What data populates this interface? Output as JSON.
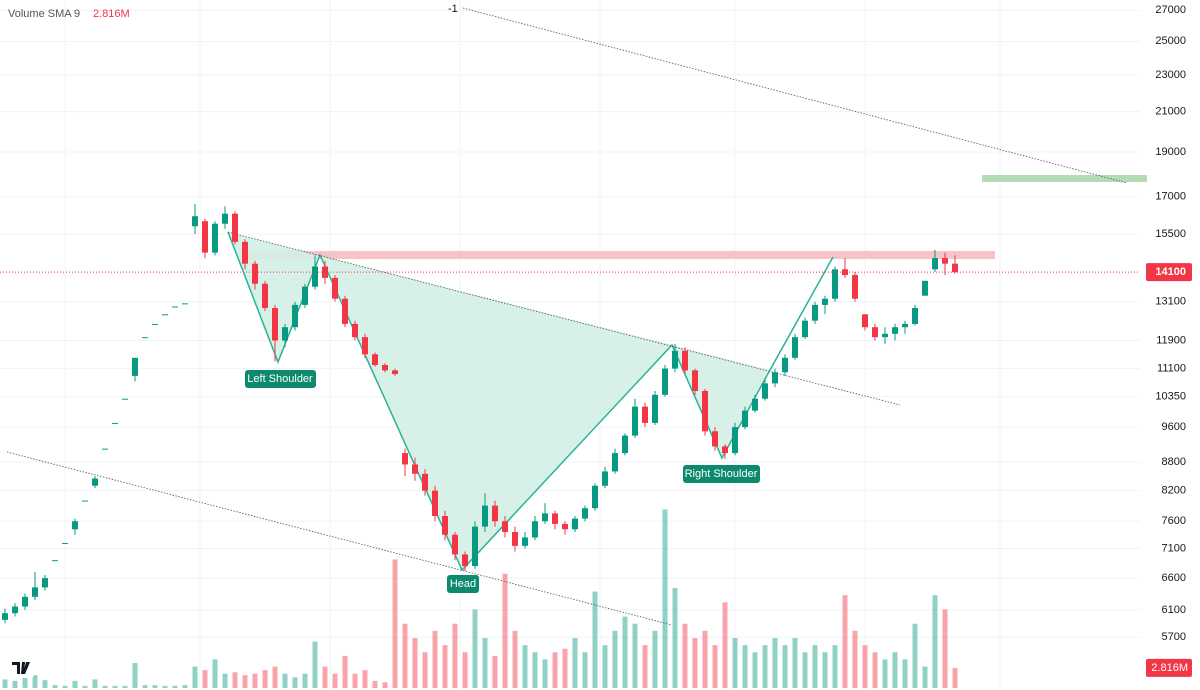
{
  "chart_data": {
    "type": "candlestick",
    "volume_sma_label": "Volume SMA 9",
    "volume_last": {
      "value": 2.816,
      "label": "2.816M"
    },
    "last_price": 14100,
    "trendline_label": "-1",
    "pattern_labels": {
      "left_shoulder": "Left Shoulder",
      "head": "Head",
      "right_shoulder": "Right Shoulder"
    },
    "log_scale": true,
    "grid": true,
    "up_color": "#089981",
    "down_color": "#f23645",
    "ylim": [
      5000,
      27700
    ],
    "yticks": [
      5700,
      6100,
      6600,
      7100,
      7600,
      8200,
      8800,
      9600,
      10350,
      11100,
      11900,
      13100,
      15500,
      17000,
      19000,
      21000,
      23000,
      25000,
      27000
    ],
    "volume_ylim": [
      0,
      42
    ],
    "candles": [
      [
        5950,
        6120,
        5900,
        6050
      ],
      [
        6050,
        6200,
        6000,
        6150
      ],
      [
        6150,
        6350,
        6100,
        6300
      ],
      [
        6300,
        6700,
        6250,
        6450
      ],
      [
        6450,
        6650,
        6400,
        6600
      ],
      [
        6900,
        6900,
        6900,
        6900
      ],
      [
        7200,
        7200,
        7200,
        7200
      ],
      [
        7450,
        7650,
        7350,
        7600
      ],
      [
        8000,
        8000,
        8000,
        8000
      ],
      [
        8300,
        8500,
        8250,
        8450
      ],
      [
        9100,
        9100,
        9100,
        9100
      ],
      [
        9700,
        9700,
        9700,
        9700
      ],
      [
        10300,
        10300,
        10300,
        10300
      ],
      [
        10900,
        11400,
        10750,
        11400
      ],
      [
        12000,
        12000,
        12000,
        12000
      ],
      [
        12400,
        12400,
        12400,
        12400
      ],
      [
        12700,
        12700,
        12700,
        12700
      ],
      [
        12950,
        12950,
        12950,
        12950
      ],
      [
        13050,
        13050,
        13050,
        13050
      ],
      [
        15800,
        16700,
        15500,
        16200
      ],
      [
        16000,
        16100,
        14600,
        14800
      ],
      [
        14800,
        16000,
        14700,
        15900
      ],
      [
        15900,
        16600,
        15700,
        16300
      ],
      [
        16300,
        16400,
        15100,
        15200
      ],
      [
        15200,
        15300,
        14200,
        14400
      ],
      [
        14400,
        14500,
        13500,
        13700
      ],
      [
        13700,
        13800,
        12800,
        12900
      ],
      [
        12900,
        13000,
        11300,
        11900
      ],
      [
        11900,
        12400,
        11700,
        12300
      ],
      [
        12300,
        13100,
        12200,
        13000
      ],
      [
        13000,
        13700,
        12900,
        13600
      ],
      [
        13600,
        14700,
        13500,
        14300
      ],
      [
        14300,
        14500,
        13700,
        13900
      ],
      [
        13900,
        14000,
        13100,
        13200
      ],
      [
        13200,
        13300,
        12300,
        12400
      ],
      [
        12400,
        12500,
        11900,
        12000
      ],
      [
        12000,
        12100,
        11400,
        11500
      ],
      [
        11500,
        11550,
        11150,
        11200
      ],
      [
        11200,
        11250,
        11000,
        11050
      ],
      [
        11050,
        11100,
        10900,
        10950
      ],
      [
        9000,
        9100,
        8500,
        8750
      ],
      [
        8750,
        8900,
        8400,
        8550
      ],
      [
        8550,
        8650,
        8100,
        8200
      ],
      [
        8200,
        8300,
        7600,
        7700
      ],
      [
        7700,
        7800,
        7250,
        7350
      ],
      [
        7350,
        7400,
        6900,
        7000
      ],
      [
        7000,
        7050,
        6720,
        6800
      ],
      [
        6800,
        7600,
        6750,
        7500
      ],
      [
        7500,
        8150,
        7400,
        7900
      ],
      [
        7900,
        8000,
        7500,
        7600
      ],
      [
        7600,
        7700,
        7300,
        7400
      ],
      [
        7400,
        7500,
        7050,
        7150
      ],
      [
        7150,
        7400,
        7100,
        7300
      ],
      [
        7300,
        7700,
        7250,
        7600
      ],
      [
        7600,
        7950,
        7550,
        7750
      ],
      [
        7750,
        7800,
        7450,
        7550
      ],
      [
        7550,
        7600,
        7350,
        7450
      ],
      [
        7450,
        7700,
        7400,
        7650
      ],
      [
        7650,
        7900,
        7600,
        7850
      ],
      [
        7850,
        8350,
        7800,
        8300
      ],
      [
        8300,
        8700,
        8250,
        8600
      ],
      [
        8600,
        9100,
        8550,
        9000
      ],
      [
        9000,
        9450,
        8950,
        9400
      ],
      [
        9400,
        10300,
        9350,
        10100
      ],
      [
        10100,
        10200,
        9600,
        9700
      ],
      [
        9700,
        10500,
        9650,
        10400
      ],
      [
        10400,
        11200,
        10350,
        11100
      ],
      [
        11100,
        11800,
        11000,
        11600
      ],
      [
        11600,
        11700,
        10950,
        11050
      ],
      [
        11050,
        11100,
        10400,
        10500
      ],
      [
        10500,
        10550,
        9400,
        9500
      ],
      [
        9500,
        9600,
        9050,
        9150
      ],
      [
        9150,
        9200,
        8870,
        9000
      ],
      [
        9000,
        9700,
        8950,
        9600
      ],
      [
        9600,
        10100,
        9550,
        10000
      ],
      [
        10000,
        10400,
        9950,
        10300
      ],
      [
        10300,
        10800,
        10250,
        10700
      ],
      [
        10700,
        11100,
        10600,
        11000
      ],
      [
        11000,
        11500,
        10900,
        11400
      ],
      [
        11400,
        12100,
        11350,
        12000
      ],
      [
        12000,
        12600,
        11950,
        12500
      ],
      [
        12500,
        13100,
        12400,
        13000
      ],
      [
        13000,
        13300,
        12700,
        13200
      ],
      [
        13200,
        14300,
        13100,
        14200
      ],
      [
        14200,
        14600,
        13900,
        14000
      ],
      [
        14000,
        14100,
        13100,
        13200
      ],
      [
        12700,
        12700,
        12200,
        12300
      ],
      [
        12300,
        12400,
        11900,
        12000
      ],
      [
        12000,
        12300,
        11800,
        12100
      ],
      [
        12100,
        12400,
        11900,
        12300
      ],
      [
        12300,
        12500,
        12100,
        12400
      ],
      [
        12400,
        13000,
        12350,
        12900
      ],
      [
        13300,
        13800,
        13300,
        13800
      ],
      [
        14200,
        14900,
        14100,
        14600
      ],
      [
        14600,
        14800,
        14000,
        14400
      ],
      [
        14400,
        14700,
        14050,
        14100
      ]
    ],
    "volume": [
      1.2,
      1.0,
      1.5,
      1.8,
      1.1,
      0.4,
      0.3,
      1.0,
      0.3,
      1.2,
      0.3,
      0.3,
      0.3,
      3.5,
      0.4,
      0.4,
      0.3,
      0.3,
      0.4,
      3.0,
      2.5,
      4.0,
      2.0,
      2.2,
      1.8,
      2.0,
      2.5,
      3.0,
      2.0,
      1.5,
      2.0,
      6.5,
      3.0,
      2.0,
      4.5,
      2.0,
      2.5,
      1.0,
      0.8,
      18.0,
      9.0,
      7.0,
      5.0,
      8.0,
      6.0,
      9.0,
      5.0,
      11.0,
      7.0,
      4.5,
      16.0,
      8.0,
      6.0,
      5.0,
      4.0,
      5.0,
      5.5,
      7.0,
      5.0,
      13.5,
      6.0,
      8.0,
      10.0,
      9.0,
      6.0,
      8.0,
      25.0,
      14.0,
      9.0,
      7.0,
      8.0,
      6.0,
      12.0,
      7.0,
      6.0,
      5.0,
      6.0,
      7.0,
      6.0,
      7.0,
      5.0,
      6.0,
      5.0,
      6.0,
      13.0,
      8.0,
      6.0,
      5.0,
      4.0,
      5.0,
      4.0,
      9.0,
      3.0,
      13.0,
      11.0,
      2.816
    ]
  }
}
